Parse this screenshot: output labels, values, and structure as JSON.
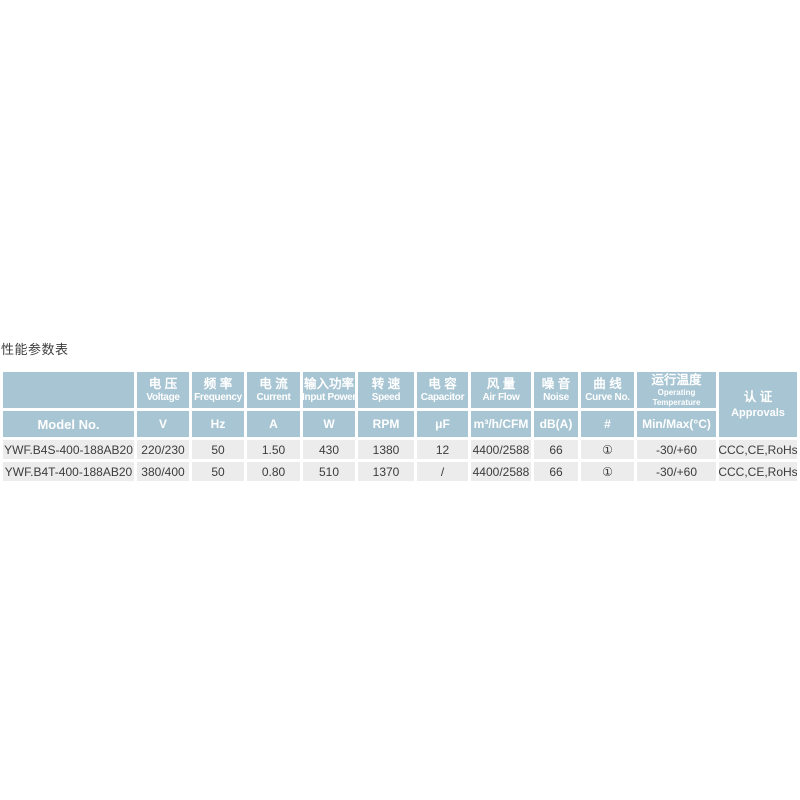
{
  "page": {
    "title": "性能参数表"
  },
  "colors": {
    "header_bg": "#a8c5d3",
    "row_bg": "#ececec",
    "header_text": "#ffffff",
    "body_text": "#3c3c3c",
    "title_text": "#3d3d3d"
  },
  "table": {
    "model_header": "Model No.",
    "columns": [
      {
        "zh": "电 压",
        "en": "Voltage",
        "unit": "V"
      },
      {
        "zh": "频 率",
        "en": "Frequency",
        "unit": "Hz"
      },
      {
        "zh": "电 流",
        "en": "Current",
        "unit": "A"
      },
      {
        "zh": "输入功率",
        "en": "Input Power",
        "unit": "W"
      },
      {
        "zh": "转 速",
        "en": "Speed",
        "unit": "RPM"
      },
      {
        "zh": "电 容",
        "en": "Capacitor",
        "unit": "μF"
      },
      {
        "zh": "风 量",
        "en": "Air Flow",
        "unit": "m³/h/CFM"
      },
      {
        "zh": "噪 音",
        "en": "Noise",
        "unit": "dB(A)"
      },
      {
        "zh": "曲 线",
        "en": "Curve No.",
        "unit": "#"
      },
      {
        "zh": "运行温度",
        "en": "Operating",
        "en2": "Temperature",
        "unit": "Min/Max(°C)"
      }
    ],
    "approvals": {
      "zh": "认 证",
      "en": "Approvals"
    },
    "rows": [
      {
        "model": "YWF.B4S-400-188AB20",
        "values": [
          "220/230",
          "50",
          "1.50",
          "430",
          "1380",
          "12",
          "4400/2588",
          "66",
          "①",
          "-30/+60",
          "CCC,CE,RoHs"
        ]
      },
      {
        "model": "YWF.B4T-400-188AB20",
        "values": [
          "380/400",
          "50",
          "0.80",
          "510",
          "1370",
          "/",
          "4400/2588",
          "66",
          "①",
          "-30/+60",
          "CCC,CE,RoHs"
        ]
      }
    ]
  }
}
